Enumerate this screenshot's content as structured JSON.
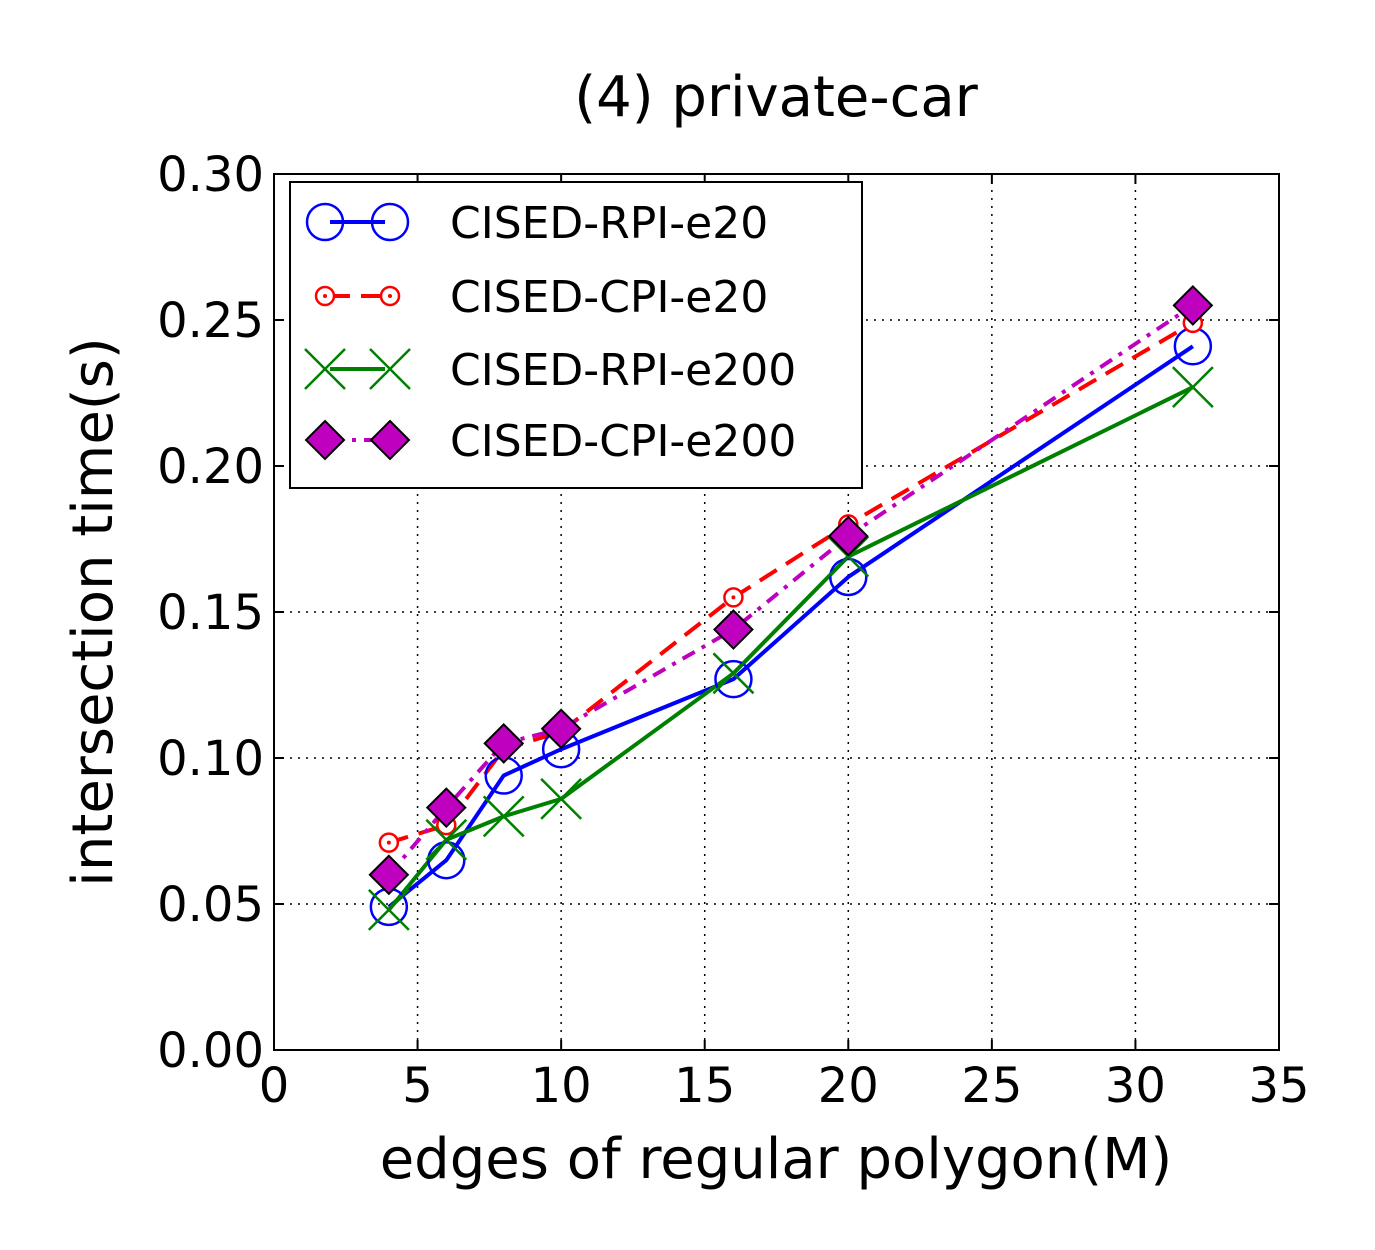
{
  "chart_data": {
    "type": "line",
    "title": "(4) private-car",
    "xlabel": "edges of regular polygon(M)",
    "ylabel": "intersection time(s)",
    "xlim": [
      0,
      35
    ],
    "ylim": [
      0.0,
      0.3
    ],
    "xticks": [
      0,
      5,
      10,
      15,
      20,
      25,
      30,
      35
    ],
    "xtick_labels": [
      "0",
      "5",
      "10",
      "15",
      "20",
      "25",
      "30",
      "35"
    ],
    "yticks": [
      0.0,
      0.05,
      0.1,
      0.15,
      0.2,
      0.25,
      0.3
    ],
    "ytick_labels": [
      "0.00",
      "0.05",
      "0.10",
      "0.15",
      "0.20",
      "0.25",
      "0.30"
    ],
    "grid": true,
    "legend_position": "top-left",
    "x": [
      4,
      6,
      8,
      10,
      16,
      20,
      32
    ],
    "series": [
      {
        "name": "CISED-RPI-e20",
        "values": [
          0.049,
          0.065,
          0.094,
          0.103,
          0.127,
          0.162,
          0.241
        ],
        "color": "#0000ff",
        "line_style": "solid",
        "marker": "circle-open-large"
      },
      {
        "name": "CISED-CPI-e20",
        "values": [
          0.071,
          0.077,
          0.103,
          0.109,
          0.155,
          0.18,
          0.249
        ],
        "color": "#ff0000",
        "line_style": "dashed",
        "marker": "circle-dot-small"
      },
      {
        "name": "CISED-RPI-e200",
        "values": [
          0.048,
          0.072,
          0.08,
          0.086,
          0.129,
          0.169,
          0.227
        ],
        "color": "#008000",
        "line_style": "solid",
        "marker": "x"
      },
      {
        "name": "CISED-CPI-e200",
        "values": [
          0.06,
          0.083,
          0.105,
          0.11,
          0.144,
          0.176,
          0.255
        ],
        "color": "#bf00bf",
        "line_style": "dashdot",
        "marker": "diamond-filled"
      }
    ]
  }
}
